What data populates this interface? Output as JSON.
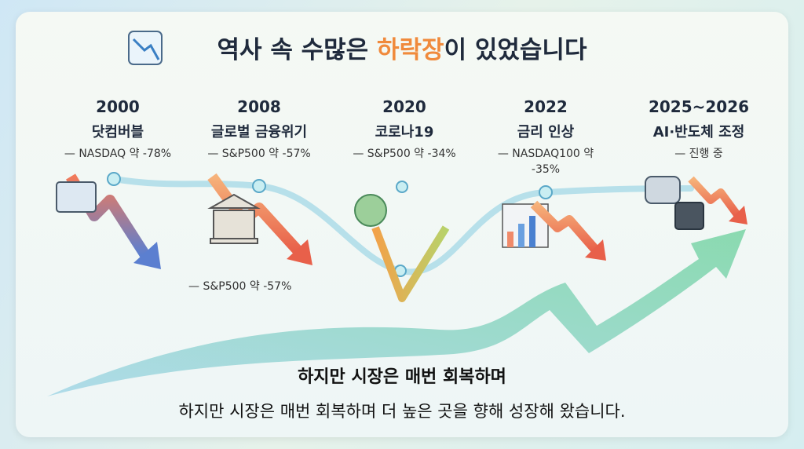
{
  "header": {
    "title_parts": [
      "역사 속 수많은 ",
      "하락장",
      "이 있었습니다"
    ]
  },
  "events": [
    {
      "year": "2000",
      "name": "닷컴버블",
      "note": "— NASDAQ 약 -78%"
    },
    {
      "year": "2008",
      "name": "글로벌 금융위기",
      "note": "— S&P500 약 -57%"
    },
    {
      "year": "2020",
      "name": "코로나19",
      "note": "— S&P500 약 -34%"
    },
    {
      "year": "2022",
      "name": "금리 인상",
      "note": "— NASDAQ100 약 -35%"
    },
    {
      "year": "2025~2026",
      "name": "AI·반도체 조정",
      "note": "— 진행 중"
    }
  ],
  "extra_label": "— S&P500 약 -57%",
  "footer": {
    "headline": "하지만 시장은 매번 회복하며",
    "subline": "하지만 시장은 매번 회복하며 더 높은 곳을 향해 성장해 왔습니다."
  }
}
